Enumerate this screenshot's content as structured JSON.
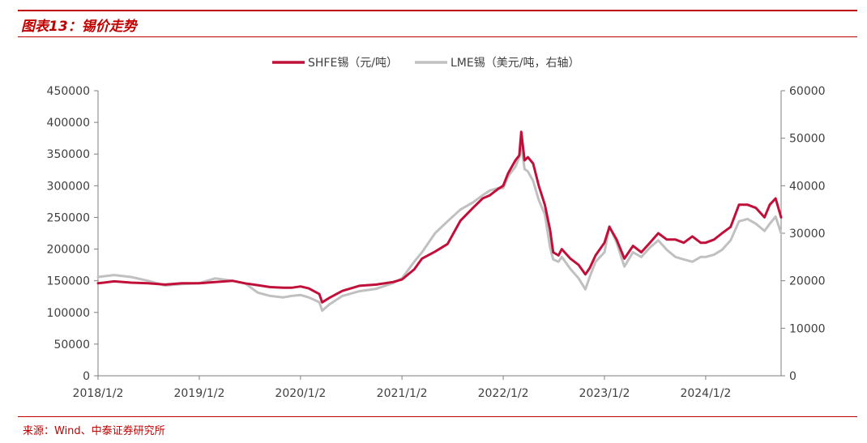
{
  "header": {
    "title": "图表13：锡价走势"
  },
  "footer": {
    "source": "来源：Wind、中泰证券研究所"
  },
  "chart_data": {
    "type": "line",
    "title": "图表13：锡价走势",
    "colors": {
      "shfe": "#c0103a",
      "lme": "#c0c0c0",
      "accent": "#c00000"
    },
    "legend_position": "top-center",
    "grid": false,
    "x_ticks": [
      "2018/1/2",
      "2019/1/2",
      "2020/1/2",
      "2021/1/2",
      "2022/1/2",
      "2023/1/2",
      "2024/1/2"
    ],
    "x_range": [
      "2018-01-02",
      "2024-09-30"
    ],
    "left_axis": {
      "ticks": [
        "0",
        "50000",
        "100000",
        "150000",
        "200000",
        "250000",
        "300000",
        "350000",
        "400000",
        "450000"
      ],
      "ylim": [
        0,
        450000
      ]
    },
    "right_axis": {
      "ticks": [
        "0",
        "10000",
        "20000",
        "30000",
        "40000",
        "50000",
        "60000"
      ],
      "ylim": [
        0,
        60000
      ]
    },
    "series": [
      {
        "name": "SHFE锡（元/吨）",
        "axis": "left",
        "points": [
          [
            "2018-01-02",
            146000
          ],
          [
            "2018-03-01",
            149000
          ],
          [
            "2018-05-01",
            147000
          ],
          [
            "2018-07-01",
            146000
          ],
          [
            "2018-09-01",
            144000
          ],
          [
            "2018-11-01",
            146000
          ],
          [
            "2019-01-02",
            146000
          ],
          [
            "2019-03-01",
            148000
          ],
          [
            "2019-05-01",
            150000
          ],
          [
            "2019-06-15",
            146000
          ],
          [
            "2019-08-01",
            143000
          ],
          [
            "2019-09-15",
            140000
          ],
          [
            "2019-11-01",
            139000
          ],
          [
            "2019-12-01",
            139000
          ],
          [
            "2020-01-02",
            141000
          ],
          [
            "2020-02-01",
            138000
          ],
          [
            "2020-03-10",
            129000
          ],
          [
            "2020-03-20",
            116000
          ],
          [
            "2020-04-15",
            123000
          ],
          [
            "2020-06-01",
            134000
          ],
          [
            "2020-08-01",
            142000
          ],
          [
            "2020-10-01",
            144000
          ],
          [
            "2020-12-01",
            148000
          ],
          [
            "2021-01-02",
            152000
          ],
          [
            "2021-02-15",
            168000
          ],
          [
            "2021-03-15",
            185000
          ],
          [
            "2021-05-01",
            196000
          ],
          [
            "2021-06-15",
            208000
          ],
          [
            "2021-08-01",
            245000
          ],
          [
            "2021-09-15",
            265000
          ],
          [
            "2021-10-20",
            280000
          ],
          [
            "2021-11-15",
            285000
          ],
          [
            "2021-12-15",
            295000
          ],
          [
            "2022-01-02",
            300000
          ],
          [
            "2022-01-20",
            320000
          ],
          [
            "2022-02-15",
            340000
          ],
          [
            "2022-03-01",
            348000
          ],
          [
            "2022-03-08",
            385000
          ],
          [
            "2022-03-20",
            340000
          ],
          [
            "2022-04-01",
            345000
          ],
          [
            "2022-04-20",
            335000
          ],
          [
            "2022-05-10",
            300000
          ],
          [
            "2022-06-01",
            270000
          ],
          [
            "2022-06-20",
            230000
          ],
          [
            "2022-07-01",
            195000
          ],
          [
            "2022-07-20",
            190000
          ],
          [
            "2022-08-01",
            200000
          ],
          [
            "2022-09-01",
            185000
          ],
          [
            "2022-10-01",
            175000
          ],
          [
            "2022-10-25",
            160000
          ],
          [
            "2022-11-10",
            170000
          ],
          [
            "2022-12-01",
            190000
          ],
          [
            "2023-01-02",
            210000
          ],
          [
            "2023-01-20",
            235000
          ],
          [
            "2023-02-15",
            215000
          ],
          [
            "2023-03-15",
            185000
          ],
          [
            "2023-04-15",
            205000
          ],
          [
            "2023-05-15",
            195000
          ],
          [
            "2023-06-15",
            210000
          ],
          [
            "2023-07-15",
            225000
          ],
          [
            "2023-08-15",
            215000
          ],
          [
            "2023-09-15",
            215000
          ],
          [
            "2023-10-15",
            210000
          ],
          [
            "2023-11-15",
            220000
          ],
          [
            "2023-12-15",
            210000
          ],
          [
            "2024-01-02",
            210000
          ],
          [
            "2024-02-01",
            215000
          ],
          [
            "2024-03-01",
            225000
          ],
          [
            "2024-04-01",
            235000
          ],
          [
            "2024-05-01",
            270000
          ],
          [
            "2024-06-01",
            270000
          ],
          [
            "2024-07-01",
            265000
          ],
          [
            "2024-08-01",
            250000
          ],
          [
            "2024-08-20",
            270000
          ],
          [
            "2024-09-10",
            280000
          ],
          [
            "2024-09-30",
            250000
          ]
        ]
      },
      {
        "name": "LME锡（美元/吨，右轴）",
        "axis": "right",
        "points": [
          [
            "2018-01-02",
            20800
          ],
          [
            "2018-03-01",
            21200
          ],
          [
            "2018-05-01",
            20800
          ],
          [
            "2018-07-01",
            20000
          ],
          [
            "2018-09-01",
            19000
          ],
          [
            "2018-11-01",
            19300
          ],
          [
            "2019-01-02",
            19500
          ],
          [
            "2019-03-01",
            20500
          ],
          [
            "2019-05-01",
            20000
          ],
          [
            "2019-06-15",
            19500
          ],
          [
            "2019-08-01",
            17500
          ],
          [
            "2019-09-15",
            16800
          ],
          [
            "2019-11-01",
            16500
          ],
          [
            "2019-12-01",
            16800
          ],
          [
            "2020-01-02",
            17000
          ],
          [
            "2020-02-01",
            16500
          ],
          [
            "2020-03-10",
            15500
          ],
          [
            "2020-03-20",
            13700
          ],
          [
            "2020-04-15",
            15000
          ],
          [
            "2020-06-01",
            16800
          ],
          [
            "2020-08-01",
            17800
          ],
          [
            "2020-10-01",
            18300
          ],
          [
            "2020-12-01",
            19500
          ],
          [
            "2021-01-02",
            20500
          ],
          [
            "2021-02-15",
            24000
          ],
          [
            "2021-03-15",
            26000
          ],
          [
            "2021-05-01",
            30000
          ],
          [
            "2021-06-15",
            32500
          ],
          [
            "2021-08-01",
            35000
          ],
          [
            "2021-09-15",
            36500
          ],
          [
            "2021-10-20",
            38000
          ],
          [
            "2021-11-15",
            39000
          ],
          [
            "2021-12-15",
            39500
          ],
          [
            "2022-01-02",
            39500
          ],
          [
            "2022-01-20",
            42000
          ],
          [
            "2022-02-15",
            44000
          ],
          [
            "2022-03-01",
            46000
          ],
          [
            "2022-03-08",
            48500
          ],
          [
            "2022-03-20",
            43500
          ],
          [
            "2022-04-01",
            43000
          ],
          [
            "2022-04-20",
            41000
          ],
          [
            "2022-05-10",
            37000
          ],
          [
            "2022-06-01",
            34000
          ],
          [
            "2022-06-20",
            27000
          ],
          [
            "2022-07-01",
            24500
          ],
          [
            "2022-07-20",
            24000
          ],
          [
            "2022-08-01",
            25000
          ],
          [
            "2022-09-01",
            22500
          ],
          [
            "2022-10-01",
            20500
          ],
          [
            "2022-10-25",
            18200
          ],
          [
            "2022-11-10",
            20800
          ],
          [
            "2022-12-01",
            24000
          ],
          [
            "2023-01-02",
            26000
          ],
          [
            "2023-01-20",
            31500
          ],
          [
            "2023-02-15",
            28000
          ],
          [
            "2023-03-15",
            23000
          ],
          [
            "2023-04-15",
            26000
          ],
          [
            "2023-05-15",
            25000
          ],
          [
            "2023-06-15",
            27000
          ],
          [
            "2023-07-15",
            28500
          ],
          [
            "2023-08-15",
            26500
          ],
          [
            "2023-09-15",
            25000
          ],
          [
            "2023-10-15",
            24500
          ],
          [
            "2023-11-15",
            24000
          ],
          [
            "2023-12-15",
            25000
          ],
          [
            "2024-01-02",
            25000
          ],
          [
            "2024-02-01",
            25500
          ],
          [
            "2024-03-01",
            26500
          ],
          [
            "2024-04-01",
            28500
          ],
          [
            "2024-05-01",
            32500
          ],
          [
            "2024-06-01",
            33000
          ],
          [
            "2024-07-01",
            32000
          ],
          [
            "2024-08-01",
            30500
          ],
          [
            "2024-08-20",
            32000
          ],
          [
            "2024-09-10",
            33500
          ],
          [
            "2024-09-30",
            30000
          ]
        ]
      }
    ]
  }
}
